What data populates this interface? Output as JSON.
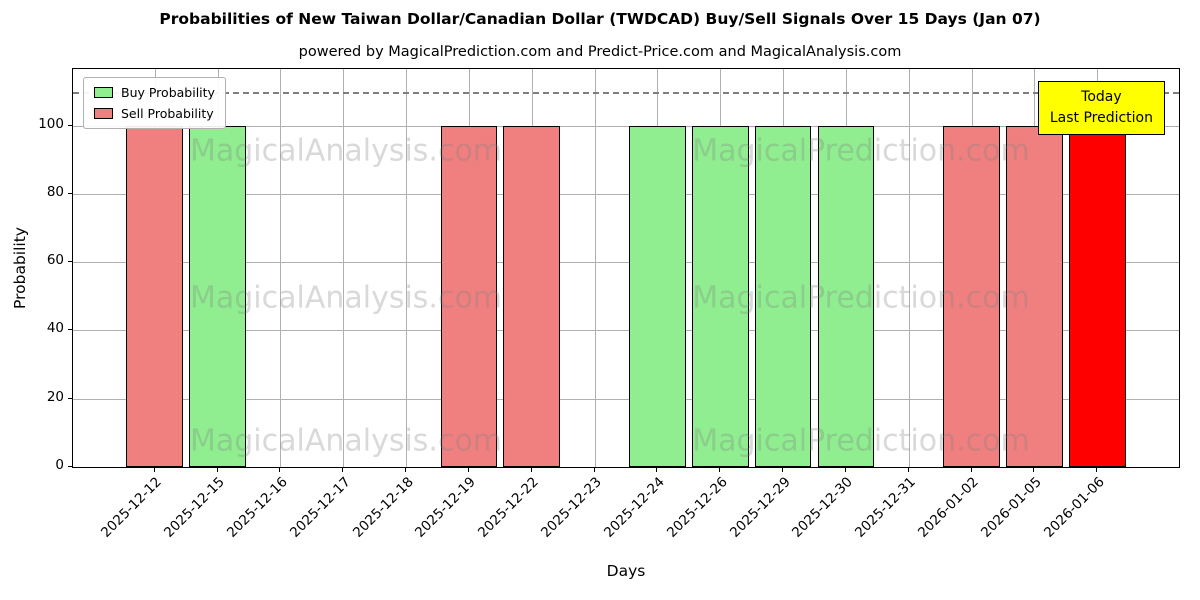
{
  "title": "Probabilities of New Taiwan Dollar/Canadian Dollar (TWDCAD) Buy/Sell Signals Over 15 Days (Jan 07)",
  "subtitle": "powered by MagicalPrediction.com and Predict-Price.com and MagicalAnalysis.com",
  "annotation": {
    "line1": "Today",
    "line2": "Last Prediction",
    "bg_color": "#ffff00"
  },
  "legend": [
    {
      "label": "Buy Probability",
      "color": "#90ee90"
    },
    {
      "label": "Sell Probability",
      "color": "#f08080"
    }
  ],
  "watermarks": {
    "left": "MagicalAnalysis.com",
    "right": "MagicalPrediction.com"
  },
  "chart_data": {
    "type": "bar",
    "title": "Probabilities of New Taiwan Dollar/Canadian Dollar (TWDCAD) Buy/Sell Signals Over 15 Days (Jan 07)",
    "xlabel": "Days",
    "ylabel": "Probability",
    "categories": [
      "2025-12-12",
      "2025-12-15",
      "2025-12-16",
      "2025-12-17",
      "2025-12-18",
      "2025-12-19",
      "2025-12-22",
      "2025-12-23",
      "2025-12-24",
      "2025-12-26",
      "2025-12-29",
      "2025-12-30",
      "2025-12-31",
      "2026-01-02",
      "2026-01-05",
      "2026-01-06"
    ],
    "series": [
      {
        "name": "Buy Probability",
        "color": "#90ee90",
        "values": [
          0,
          100,
          0,
          0,
          0,
          0,
          0,
          0,
          100,
          100,
          100,
          100,
          0,
          0,
          0,
          0
        ]
      },
      {
        "name": "Sell Probability",
        "color": "#f08080",
        "values": [
          100,
          0,
          0,
          0,
          0,
          100,
          100,
          0,
          0,
          0,
          0,
          0,
          0,
          100,
          100,
          0
        ]
      },
      {
        "name": "Today Last Prediction",
        "color": "#ff0000",
        "values": [
          0,
          0,
          0,
          0,
          0,
          0,
          0,
          0,
          0,
          0,
          0,
          0,
          0,
          0,
          0,
          100
        ]
      }
    ],
    "ylim": [
      0,
      116.6
    ],
    "yticks": [
      0,
      20,
      40,
      60,
      80,
      100
    ],
    "xlim": [
      -1.3,
      16.3
    ],
    "bar_width": 0.9,
    "grid": true,
    "dashed_line_y": 110,
    "legend_position": "upper left"
  }
}
